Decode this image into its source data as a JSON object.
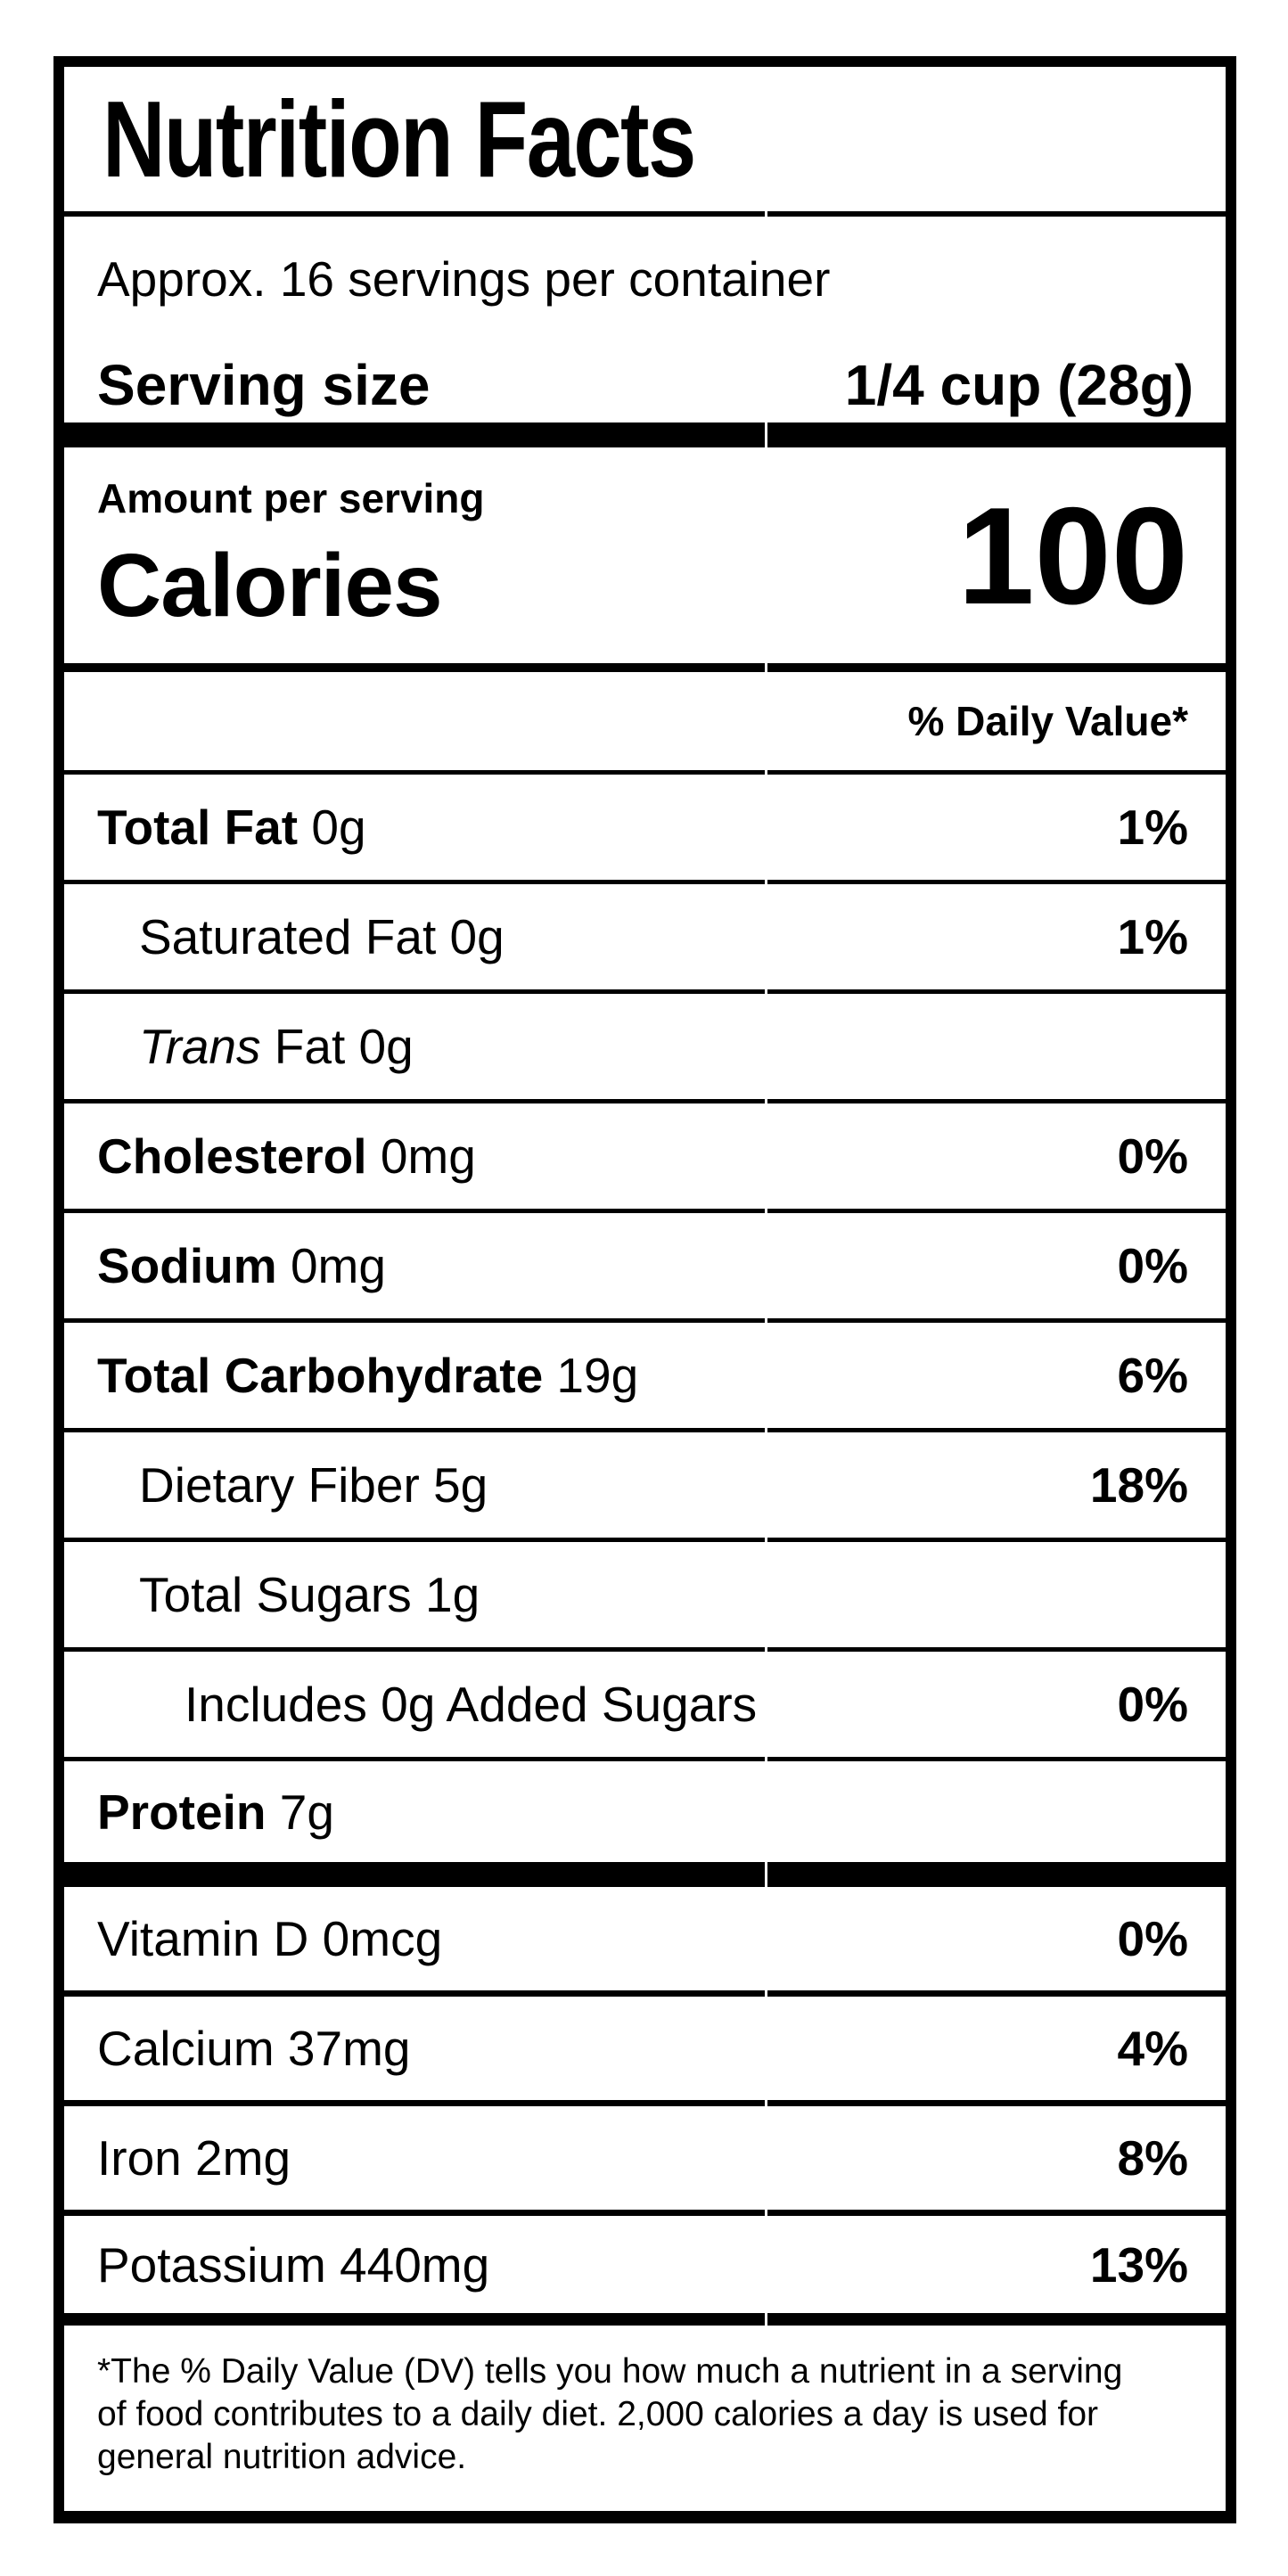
{
  "title": "Nutrition Facts",
  "servings_per_container": "Approx. 16 servings per container",
  "serving_size": {
    "label": "Serving size",
    "value": "1/4 cup (28g)"
  },
  "calories": {
    "section_label": "Amount per serving",
    "label": "Calories",
    "value": "100"
  },
  "daily_value_header": "% Daily Value*",
  "nutrients": [
    {
      "name": "Total Fat",
      "amount": "0g",
      "dv": "1%",
      "bold": true,
      "indent": 0
    },
    {
      "name": "Saturated Fat",
      "amount": "0g",
      "dv": "1%",
      "bold": false,
      "indent": 1
    },
    {
      "name": "Fat",
      "italic_prefix": "Trans",
      "amount": "0g",
      "dv": "",
      "bold": false,
      "indent": 1
    },
    {
      "name": "Cholesterol",
      "amount": "0mg",
      "dv": "0%",
      "bold": true,
      "indent": 0
    },
    {
      "name": "Sodium",
      "amount": "0mg",
      "dv": "0%",
      "bold": true,
      "indent": 0
    },
    {
      "name": "Total Carbohydrate",
      "amount": "19g",
      "dv": "6%",
      "bold": true,
      "indent": 0
    },
    {
      "name": "Dietary Fiber",
      "amount": "5g",
      "dv": "18%",
      "bold": false,
      "indent": 1
    },
    {
      "name": "Total Sugars",
      "amount": "1g",
      "dv": "",
      "bold": false,
      "indent": 1
    },
    {
      "name": "Includes 0g Added Sugars",
      "amount": "",
      "dv": "0%",
      "bold": false,
      "indent": 2
    },
    {
      "name": "Protein",
      "amount": "7g",
      "dv": "",
      "bold": true,
      "indent": 0
    }
  ],
  "vitamins": [
    {
      "name": "Vitamin D",
      "amount": "0mcg",
      "dv": "0%"
    },
    {
      "name": "Calcium",
      "amount": "37mg",
      "dv": "4%"
    },
    {
      "name": "Iron",
      "amount": "2mg",
      "dv": "8%"
    },
    {
      "name": "Potassium",
      "amount": "440mg",
      "dv": "13%"
    }
  ],
  "footnote_lines": [
    "*The % Daily Value (DV) tells you how much a nutrient in a serving",
    "of food contributes to a daily diet. 2,000 calories a day is used for",
    "general nutrition advice."
  ],
  "colors": {
    "ink": "#000000",
    "paper": "#ffffff"
  }
}
